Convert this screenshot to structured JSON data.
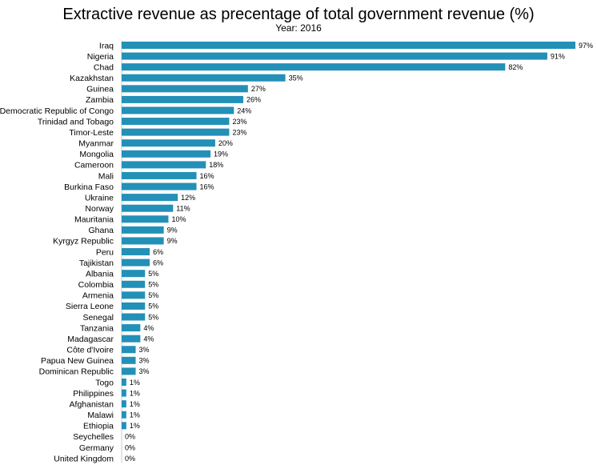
{
  "chart_data": {
    "type": "bar",
    "orientation": "horizontal",
    "title": "Extractive revenue as precentage of total government revenue (%)",
    "subtitle": "Year: 2016",
    "xlabel": "",
    "ylabel": "",
    "xlim": [
      0,
      97
    ],
    "grid": false,
    "legend": "none",
    "bar_color": "#2390b8",
    "categories": [
      "Iraq",
      "Nigeria",
      "Chad",
      "Kazakhstan",
      "Guinea",
      "Zambia",
      "Democratic Republic of Congo",
      "Trinidad and Tobago",
      "Timor-Leste",
      "Myanmar",
      "Mongolia",
      "Cameroon",
      "Mali",
      "Burkina Faso",
      "Ukraine",
      "Norway",
      "Mauritania",
      "Ghana",
      "Kyrgyz Republic",
      "Peru",
      "Tajikistan",
      "Albania",
      "Colombia",
      "Armenia",
      "Sierra Leone",
      "Senegal",
      "Tanzania",
      "Madagascar",
      "Côte d'Ivoire",
      "Papua New Guinea",
      "Dominican Republic",
      "Togo",
      "Philippines",
      "Afghanistan",
      "Malawi",
      "Ethiopia",
      "Seychelles",
      "Germany",
      "United Kingdom"
    ],
    "values": [
      97,
      91,
      82,
      35,
      27,
      26,
      24,
      23,
      23,
      20,
      19,
      18,
      16,
      16,
      12,
      11,
      10,
      9,
      9,
      6,
      6,
      5,
      5,
      5,
      5,
      5,
      4,
      4,
      3,
      3,
      3,
      1,
      1,
      1,
      1,
      1,
      0,
      0,
      0
    ],
    "value_labels": [
      "97%",
      "91%",
      "82%",
      "35%",
      "27%",
      "26%",
      "24%",
      "23%",
      "23%",
      "20%",
      "19%",
      "18%",
      "16%",
      "16%",
      "12%",
      "11%",
      "10%",
      "9%",
      "9%",
      "6%",
      "6%",
      "5%",
      "5%",
      "5%",
      "5%",
      "5%",
      "4%",
      "4%",
      "3%",
      "3%",
      "3%",
      "1%",
      "1%",
      "1%",
      "1%",
      "1%",
      "0%",
      "0%",
      "0%"
    ]
  }
}
